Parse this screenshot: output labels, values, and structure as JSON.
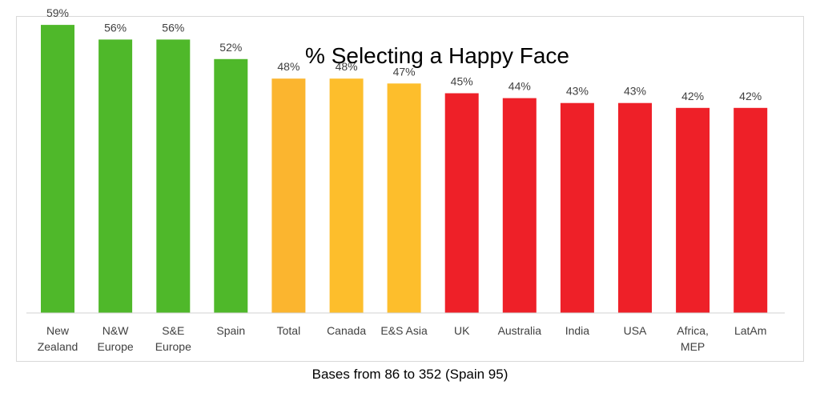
{
  "chart_data": {
    "type": "bar",
    "title": "% Selecting a Happy Face",
    "xlabel": "",
    "ylabel": "",
    "ylim": [
      0,
      60
    ],
    "grid": false,
    "legend": "none",
    "value_suffix": "%",
    "categories": [
      [
        "New",
        "Zealand"
      ],
      [
        "N&W",
        "Europe"
      ],
      [
        "S&E",
        "Europe"
      ],
      [
        "Spain"
      ],
      [
        "Total"
      ],
      [
        "Canada"
      ],
      [
        "E&S Asia"
      ],
      [
        "UK"
      ],
      [
        "Australia"
      ],
      [
        "India"
      ],
      [
        "USA"
      ],
      [
        "Africa,",
        "MEP"
      ],
      [
        "LatAm"
      ]
    ],
    "values": [
      59,
      56,
      56,
      52,
      48,
      48,
      47,
      45,
      44,
      43,
      43,
      42,
      42
    ],
    "bar_colors": [
      "#4fb82a",
      "#4fb82a",
      "#4fb82a",
      "#4fb82a",
      "#fbb52f",
      "#fdbe2c",
      "#fdbe2c",
      "#ee2028",
      "#ee2028",
      "#ee2028",
      "#ee2028",
      "#ee2028",
      "#ee2028"
    ]
  },
  "caption": "Bases from 86 to 352 (Spain 95)"
}
